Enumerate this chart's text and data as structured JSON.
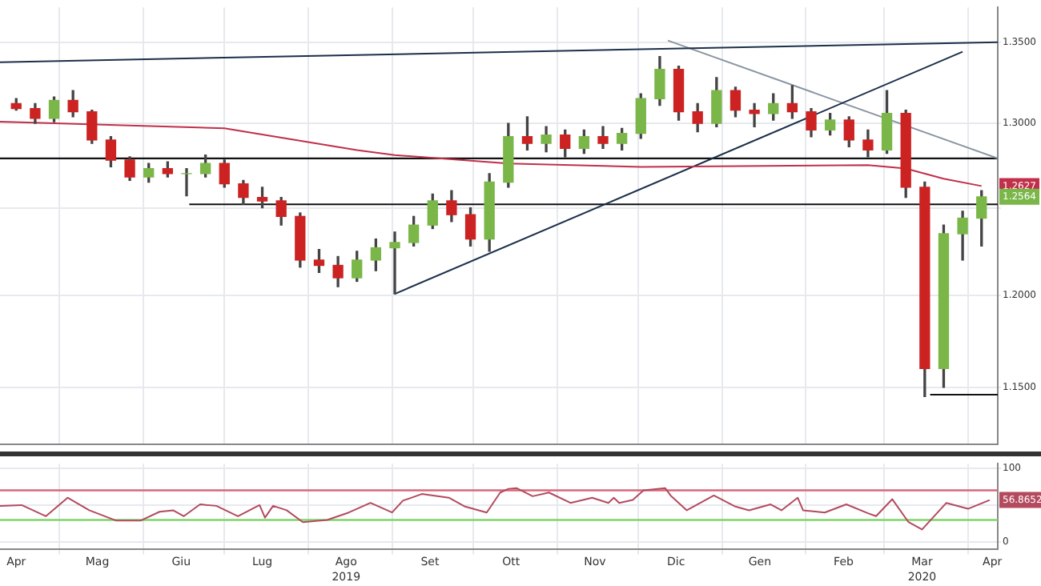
{
  "chart_data": [
    {
      "type": "candlestick",
      "log": true,
      "grid": true,
      "legend": false,
      "tick_labels": "y",
      "x": [
        "2019-04-15",
        "2019-04-22",
        "2019-04-29",
        "2019-05-06",
        "2019-05-13",
        "2019-05-20",
        "2019-05-27",
        "2019-06-03",
        "2019-06-10",
        "2019-06-17",
        "2019-06-24",
        "2019-07-01",
        "2019-07-08",
        "2019-07-15",
        "2019-07-22",
        "2019-07-29",
        "2019-08-05",
        "2019-08-12",
        "2019-08-19",
        "2019-08-26",
        "2019-09-02",
        "2019-09-09",
        "2019-09-16",
        "2019-09-23",
        "2019-09-30",
        "2019-10-07",
        "2019-10-14",
        "2019-10-21",
        "2019-10-28",
        "2019-11-04",
        "2019-11-11",
        "2019-11-18",
        "2019-11-25",
        "2019-12-02",
        "2019-12-09",
        "2019-12-16",
        "2019-12-23",
        "2019-12-30",
        "2020-01-06",
        "2020-01-13",
        "2020-01-20",
        "2020-01-27",
        "2020-02-03",
        "2020-02-10",
        "2020-02-17",
        "2020-02-24",
        "2020-03-02",
        "2020-03-09",
        "2020-03-16",
        "2020-03-23",
        "2020-03-30",
        "2020-04-06"
      ],
      "ohlc": [
        [
          1.312,
          1.315,
          1.308,
          1.309
        ],
        [
          1.309,
          1.312,
          1.3,
          1.303
        ],
        [
          1.303,
          1.316,
          1.301,
          1.314
        ],
        [
          1.314,
          1.32,
          1.304,
          1.307
        ],
        [
          1.307,
          1.308,
          1.288,
          1.29
        ],
        [
          1.29,
          1.292,
          1.274,
          1.278
        ],
        [
          1.278,
          1.28,
          1.266,
          1.268
        ],
        [
          1.268,
          1.276,
          1.265,
          1.273
        ],
        [
          1.273,
          1.277,
          1.268,
          1.27
        ],
        [
          1.27,
          1.273,
          1.257,
          1.27
        ],
        [
          1.27,
          1.281,
          1.268,
          1.276
        ],
        [
          1.276,
          1.278,
          1.262,
          1.264
        ],
        [
          1.264,
          1.266,
          1.252,
          1.256
        ],
        [
          1.256,
          1.262,
          1.25,
          1.254
        ],
        [
          1.254,
          1.256,
          1.24,
          1.245
        ],
        [
          1.245,
          1.247,
          1.216,
          1.22
        ],
        [
          1.22,
          1.226,
          1.213,
          1.217
        ],
        [
          1.217,
          1.222,
          1.205,
          1.21
        ],
        [
          1.21,
          1.225,
          1.208,
          1.22
        ],
        [
          1.22,
          1.232,
          1.214,
          1.227
        ],
        [
          1.227,
          1.236,
          1.201,
          1.23
        ],
        [
          1.23,
          1.245,
          1.228,
          1.24
        ],
        [
          1.24,
          1.258,
          1.238,
          1.254
        ],
        [
          1.254,
          1.26,
          1.242,
          1.246
        ],
        [
          1.246,
          1.25,
          1.228,
          1.232
        ],
        [
          1.232,
          1.27,
          1.225,
          1.265
        ],
        [
          1.265,
          1.3,
          1.262,
          1.292
        ],
        [
          1.292,
          1.304,
          1.284,
          1.288
        ],
        [
          1.288,
          1.298,
          1.283,
          1.293
        ],
        [
          1.293,
          1.296,
          1.28,
          1.285
        ],
        [
          1.285,
          1.296,
          1.282,
          1.292
        ],
        [
          1.292,
          1.298,
          1.285,
          1.288
        ],
        [
          1.288,
          1.297,
          1.284,
          1.294
        ],
        [
          1.294,
          1.318,
          1.291,
          1.315
        ],
        [
          1.315,
          1.341,
          1.311,
          1.333
        ],
        [
          1.333,
          1.335,
          1.302,
          1.307
        ],
        [
          1.307,
          1.312,
          1.295,
          1.3
        ],
        [
          1.3,
          1.328,
          1.298,
          1.32
        ],
        [
          1.32,
          1.322,
          1.304,
          1.308
        ],
        [
          1.308,
          1.312,
          1.298,
          1.306
        ],
        [
          1.306,
          1.318,
          1.302,
          1.312
        ],
        [
          1.312,
          1.323,
          1.303,
          1.307
        ],
        [
          1.307,
          1.309,
          1.292,
          1.296
        ],
        [
          1.296,
          1.306,
          1.293,
          1.302
        ],
        [
          1.302,
          1.304,
          1.286,
          1.29
        ],
        [
          1.29,
          1.296,
          1.28,
          1.284
        ],
        [
          1.284,
          1.32,
          1.282,
          1.306
        ],
        [
          1.306,
          1.308,
          1.256,
          1.262
        ],
        [
          1.262,
          1.265,
          1.145,
          1.16
        ],
        [
          1.16,
          1.24,
          1.15,
          1.235
        ],
        [
          1.235,
          1.248,
          1.22,
          1.244
        ],
        [
          1.244,
          1.26,
          1.228,
          1.2564
        ]
      ],
      "series": [
        {
          "type": "line",
          "color": "#c0304a",
          "x": [
            "2019-04-09",
            "2019-07-01",
            "2019-08-19",
            "2019-09-02",
            "2019-10-14",
            "2019-12-02",
            "2020-02-24",
            "2020-03-09",
            "2020-03-23",
            "2020-04-06"
          ],
          "values": [
            1.301,
            1.297,
            1.284,
            1.281,
            1.276,
            1.274,
            1.275,
            1.273,
            1.267,
            1.2627
          ]
        },
        {
          "type": "line",
          "color": "#1c2f4a",
          "x": [
            "2019-04-09",
            "2020-04-12"
          ],
          "values": [
            1.3375,
            1.35
          ]
        },
        {
          "type": "line",
          "color": "#1c2f4a",
          "x": [
            "2019-09-02",
            "2020-03-30"
          ],
          "values": [
            1.201,
            1.344
          ]
        },
        {
          "type": "line",
          "color": "#8a96a3",
          "x": [
            "2019-12-12",
            "2020-04-12"
          ],
          "values": [
            1.351,
            1.279
          ]
        },
        {
          "type": "line",
          "color": "#111111",
          "x": [
            "2019-06-18",
            "2020-04-12"
          ],
          "values": [
            1.252,
            1.252
          ]
        },
        {
          "type": "line",
          "color": "#111111",
          "x": [
            "2020-03-18",
            "2020-04-12"
          ],
          "values": [
            1.146,
            1.146
          ]
        }
      ],
      "ref_lines": [
        {
          "axis": "y",
          "value": 1.279,
          "color": "#111111"
        }
      ],
      "annotations": [
        {
          "text": "1.2627",
          "y": 1.2627
        },
        {
          "text": "1.2564",
          "y": 1.2564
        }
      ],
      "xlim": [
        "2019-04-09",
        "2020-04-12"
      ],
      "xticks": [
        {
          "value": "2019-05-01",
          "label": null
        },
        {
          "value": "2019-06-01",
          "label": null
        },
        {
          "value": "2019-07-01",
          "label": null
        },
        {
          "value": "2019-08-01",
          "label": null
        },
        {
          "value": "2019-09-01",
          "label": null
        },
        {
          "value": "2019-10-01",
          "label": null
        },
        {
          "value": "2019-11-01",
          "label": null
        },
        {
          "value": "2019-12-01",
          "label": null
        },
        {
          "value": "2020-01-01",
          "label": null
        },
        {
          "value": "2020-02-01",
          "label": null
        },
        {
          "value": "2020-03-01",
          "label": null
        },
        {
          "value": "2020-04-01",
          "label": null
        }
      ],
      "ylim": [
        1.122,
        1.372
      ],
      "yticks": [
        {
          "value": 1.15,
          "label": "1.1500"
        },
        {
          "value": 1.2,
          "label": "1.2000"
        },
        {
          "value": 1.25,
          "label": null
        },
        {
          "value": 1.3,
          "label": "1.3000"
        },
        {
          "value": 1.35,
          "label": "1.3500"
        }
      ]
    },
    {
      "type": "line",
      "grid": true,
      "legend": false,
      "series": [
        {
          "color": "#b34a5e",
          "x": [
            "2019-04-09",
            "2019-04-17",
            "2019-04-26",
            "2019-05-04",
            "2019-05-12",
            "2019-05-22",
            "2019-05-31",
            "2019-06-07",
            "2019-06-12",
            "2019-06-16",
            "2019-06-22",
            "2019-06-28",
            "2019-07-06",
            "2019-07-14",
            "2019-07-16",
            "2019-07-19",
            "2019-07-24",
            "2019-07-30",
            "2019-08-08",
            "2019-08-16",
            "2019-08-24",
            "2019-09-01",
            "2019-09-05",
            "2019-09-12",
            "2019-09-22",
            "2019-09-28",
            "2019-10-06",
            "2019-10-11",
            "2019-10-14",
            "2019-10-17",
            "2019-10-23",
            "2019-10-29",
            "2019-11-06",
            "2019-11-14",
            "2019-11-20",
            "2019-11-22",
            "2019-11-24",
            "2019-11-29",
            "2019-12-03",
            "2019-12-11",
            "2019-12-13",
            "2019-12-19",
            "2019-12-29",
            "2020-01-06",
            "2020-01-11",
            "2020-01-19",
            "2020-01-23",
            "2020-01-29",
            "2020-01-31",
            "2020-02-08",
            "2020-02-16",
            "2020-02-24",
            "2020-02-27",
            "2020-03-04",
            "2020-03-10",
            "2020-03-15",
            "2020-03-24",
            "2020-04-01",
            "2020-04-09"
          ],
          "values": [
            49,
            50,
            35,
            60,
            43,
            29,
            29,
            41,
            43,
            35,
            51,
            49,
            35,
            50,
            33,
            49,
            43,
            27,
            30,
            40,
            53,
            40,
            56,
            65,
            60,
            48,
            40,
            67,
            72,
            73,
            62,
            67,
            53,
            60,
            53,
            60,
            53,
            57,
            70,
            73,
            63,
            43,
            63,
            48,
            43,
            51,
            43,
            60,
            43,
            40,
            51,
            39,
            35,
            58,
            27,
            17,
            53,
            45,
            56.8652
          ]
        }
      ],
      "ref_lines": [
        {
          "axis": "y",
          "value": 70,
          "color": "#d9677a"
        },
        {
          "axis": "y",
          "value": 30,
          "color": "#7fd36b"
        }
      ],
      "annotations": [
        {
          "text": "56.8652",
          "y": 56.8652
        }
      ],
      "x2lim": [
        "2019-04-09",
        "2020-04-12"
      ],
      "x2ticks": [
        {
          "value": "2019-08-15",
          "label": "2019"
        },
        {
          "value": "2020-03-15",
          "label": "2020"
        }
      ],
      "xlim": [
        "2019-04-09",
        "2020-04-12"
      ],
      "xticks": [
        {
          "value": "2019-04-15",
          "label": "Apr"
        },
        {
          "value": "2019-05-01",
          "label": null
        },
        {
          "value": "2019-05-15",
          "label": "Mag"
        },
        {
          "value": "2019-06-01",
          "label": null
        },
        {
          "value": "2019-06-15",
          "label": "Giu"
        },
        {
          "value": "2019-07-01",
          "label": null
        },
        {
          "value": "2019-07-15",
          "label": "Lug"
        },
        {
          "value": "2019-08-01",
          "label": null
        },
        {
          "value": "2019-08-15",
          "label": "Ago"
        },
        {
          "value": "2019-09-01",
          "label": null
        },
        {
          "value": "2019-09-15",
          "label": "Set"
        },
        {
          "value": "2019-10-01",
          "label": null
        },
        {
          "value": "2019-10-15",
          "label": "Ott"
        },
        {
          "value": "2019-11-01",
          "label": null
        },
        {
          "value": "2019-11-15",
          "label": "Nov"
        },
        {
          "value": "2019-12-01",
          "label": null
        },
        {
          "value": "2019-12-15",
          "label": "Dic"
        },
        {
          "value": "2020-01-01",
          "label": null
        },
        {
          "value": "2020-01-15",
          "label": "Gen"
        },
        {
          "value": "2020-02-01",
          "label": null
        },
        {
          "value": "2020-02-15",
          "label": "Feb"
        },
        {
          "value": "2020-03-01",
          "label": null
        },
        {
          "value": "2020-03-15",
          "label": "Mar"
        },
        {
          "value": "2020-04-01",
          "label": null
        },
        {
          "value": "2020-04-10",
          "label": "Apr"
        }
      ],
      "ylim": [
        -10,
        106
      ],
      "yticks": [
        0,
        {
          "value": 50,
          "label": null
        },
        100
      ]
    }
  ]
}
